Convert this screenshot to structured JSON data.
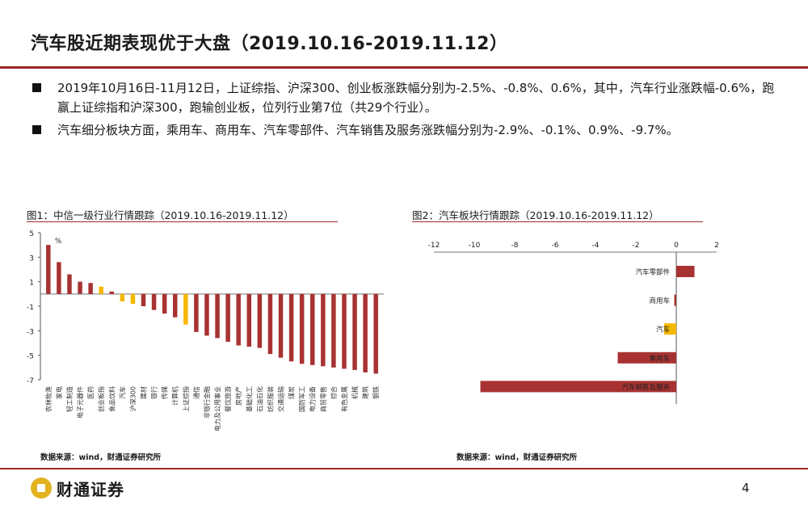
{
  "page": {
    "title": "汽车股近期表现优于大盘（2019.10.16-2019.11.12）",
    "page_number": "4",
    "logo_text": "财通证券"
  },
  "bullets": [
    "2019年10月16日-11月12日，上证综指、沪深300、创业板涨跌幅分别为-2.5%、-0.8%、0.6%，其中，汽车行业涨跌幅-0.6%，跑赢上证综指和沪深300，跑输创业板，位列行业第7位（共29个行业）。",
    "汽车细分板块方面，乘用车、商用车、汽车零部件、汽车销售及服务涨跌幅分别为-2.9%、-0.1%、0.9%、-9.7%。"
  ],
  "figures": {
    "fig1_caption": "图1：中信一级行业行情跟踪（2019.10.16-2019.11.12）",
    "fig2_caption": "图2：汽车板块行情跟踪（2019.10.16-2019.11.12）",
    "source1": "数据来源：wind，财通证券研究所",
    "source2": "数据来源：wind，财通证券研究所"
  },
  "colors": {
    "bar": "#a83232",
    "highlight": "#f5b800",
    "accent_rule": "#9b2a2a"
  },
  "chart_data": [
    {
      "type": "bar",
      "orientation": "vertical",
      "title": "",
      "unit": "%",
      "ylim": [
        -7,
        5
      ],
      "yticks": [
        5,
        3,
        1,
        -1,
        -3,
        -5,
        -7
      ],
      "categories": [
        "农林牧渔",
        "家电",
        "轻工制造",
        "电子元器件",
        "医药",
        "创业板指",
        "食品饮料",
        "汽车",
        "沪深300",
        "建材",
        "银行",
        "传媒",
        "计算机",
        "上证综指",
        "通信",
        "非银行金融",
        "电力及公用事业",
        "餐饮旅游",
        "房地产",
        "基础化工",
        "石油石化",
        "纺织服装",
        "交通运输",
        "煤炭",
        "国防军工",
        "电力设备",
        "商贸零售",
        "综合",
        "有色金属",
        "机械",
        "建筑",
        "钢铁"
      ],
      "values": [
        4.0,
        2.6,
        1.6,
        1.0,
        0.9,
        0.6,
        0.2,
        -0.6,
        -0.8,
        -1.0,
        -1.3,
        -1.6,
        -1.9,
        -2.5,
        -3.1,
        -3.4,
        -3.6,
        -3.9,
        -4.2,
        -4.3,
        -4.4,
        -4.9,
        -5.2,
        -5.5,
        -5.7,
        -5.8,
        -5.9,
        -6.0,
        -6.1,
        -6.2,
        -6.4,
        -6.5
      ],
      "highlighted": [
        "创业板指",
        "汽车",
        "沪深300",
        "上证综指"
      ]
    },
    {
      "type": "bar",
      "orientation": "horizontal",
      "title": "",
      "unit": "%",
      "xlim": [
        -12,
        2
      ],
      "xticks": [
        -12,
        -10,
        -8,
        -6,
        -4,
        -2,
        0,
        2
      ],
      "categories": [
        "汽车零部件",
        "商用车",
        "汽车",
        "乘用车",
        "汽车销售及服务"
      ],
      "values": [
        0.9,
        -0.1,
        -0.6,
        -2.9,
        -9.7
      ],
      "highlighted": [
        "汽车"
      ]
    }
  ]
}
